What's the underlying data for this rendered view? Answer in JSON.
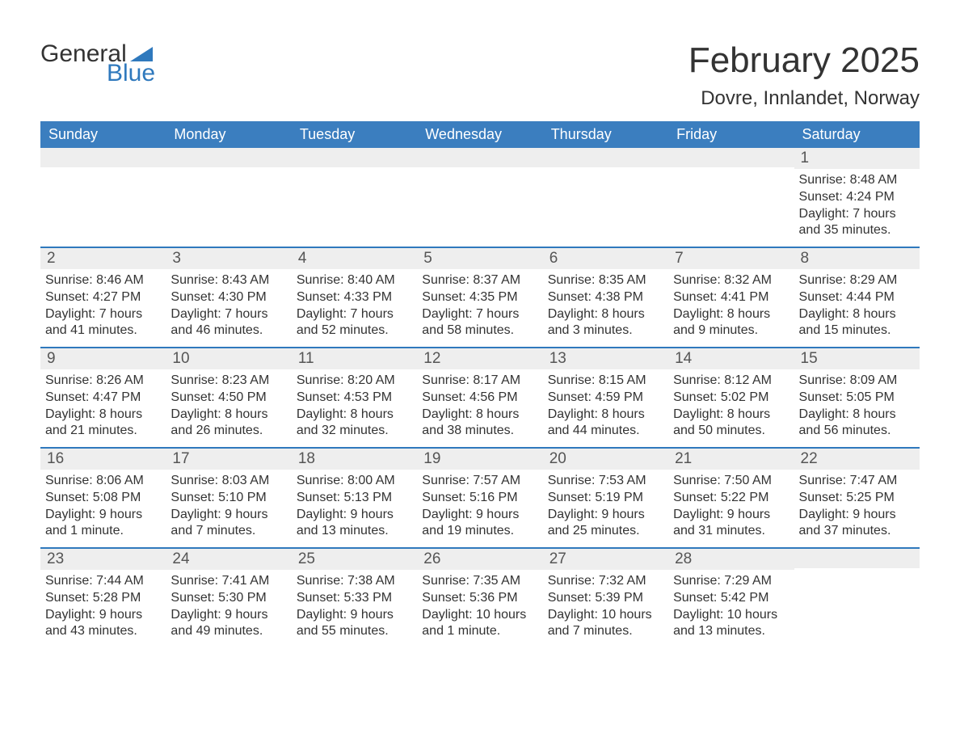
{
  "logo": {
    "text1": "General",
    "text2": "Blue",
    "accent_color": "#2f79bd"
  },
  "title": "February 2025",
  "location": "Dovre, Innlandet, Norway",
  "colors": {
    "header_bg": "#3b7ebf",
    "header_text": "#ffffff",
    "week_border": "#2f79bd",
    "daynum_bg": "#eeeeee",
    "text": "#333333",
    "page_bg": "#ffffff"
  },
  "day_names": [
    "Sunday",
    "Monday",
    "Tuesday",
    "Wednesday",
    "Thursday",
    "Friday",
    "Saturday"
  ],
  "weeks": [
    [
      null,
      null,
      null,
      null,
      null,
      null,
      {
        "n": "1",
        "sunrise": "Sunrise: 8:48 AM",
        "sunset": "Sunset: 4:24 PM",
        "dl1": "Daylight: 7 hours",
        "dl2": "and 35 minutes."
      }
    ],
    [
      {
        "n": "2",
        "sunrise": "Sunrise: 8:46 AM",
        "sunset": "Sunset: 4:27 PM",
        "dl1": "Daylight: 7 hours",
        "dl2": "and 41 minutes."
      },
      {
        "n": "3",
        "sunrise": "Sunrise: 8:43 AM",
        "sunset": "Sunset: 4:30 PM",
        "dl1": "Daylight: 7 hours",
        "dl2": "and 46 minutes."
      },
      {
        "n": "4",
        "sunrise": "Sunrise: 8:40 AM",
        "sunset": "Sunset: 4:33 PM",
        "dl1": "Daylight: 7 hours",
        "dl2": "and 52 minutes."
      },
      {
        "n": "5",
        "sunrise": "Sunrise: 8:37 AM",
        "sunset": "Sunset: 4:35 PM",
        "dl1": "Daylight: 7 hours",
        "dl2": "and 58 minutes."
      },
      {
        "n": "6",
        "sunrise": "Sunrise: 8:35 AM",
        "sunset": "Sunset: 4:38 PM",
        "dl1": "Daylight: 8 hours",
        "dl2": "and 3 minutes."
      },
      {
        "n": "7",
        "sunrise": "Sunrise: 8:32 AM",
        "sunset": "Sunset: 4:41 PM",
        "dl1": "Daylight: 8 hours",
        "dl2": "and 9 minutes."
      },
      {
        "n": "8",
        "sunrise": "Sunrise: 8:29 AM",
        "sunset": "Sunset: 4:44 PM",
        "dl1": "Daylight: 8 hours",
        "dl2": "and 15 minutes."
      }
    ],
    [
      {
        "n": "9",
        "sunrise": "Sunrise: 8:26 AM",
        "sunset": "Sunset: 4:47 PM",
        "dl1": "Daylight: 8 hours",
        "dl2": "and 21 minutes."
      },
      {
        "n": "10",
        "sunrise": "Sunrise: 8:23 AM",
        "sunset": "Sunset: 4:50 PM",
        "dl1": "Daylight: 8 hours",
        "dl2": "and 26 minutes."
      },
      {
        "n": "11",
        "sunrise": "Sunrise: 8:20 AM",
        "sunset": "Sunset: 4:53 PM",
        "dl1": "Daylight: 8 hours",
        "dl2": "and 32 minutes."
      },
      {
        "n": "12",
        "sunrise": "Sunrise: 8:17 AM",
        "sunset": "Sunset: 4:56 PM",
        "dl1": "Daylight: 8 hours",
        "dl2": "and 38 minutes."
      },
      {
        "n": "13",
        "sunrise": "Sunrise: 8:15 AM",
        "sunset": "Sunset: 4:59 PM",
        "dl1": "Daylight: 8 hours",
        "dl2": "and 44 minutes."
      },
      {
        "n": "14",
        "sunrise": "Sunrise: 8:12 AM",
        "sunset": "Sunset: 5:02 PM",
        "dl1": "Daylight: 8 hours",
        "dl2": "and 50 minutes."
      },
      {
        "n": "15",
        "sunrise": "Sunrise: 8:09 AM",
        "sunset": "Sunset: 5:05 PM",
        "dl1": "Daylight: 8 hours",
        "dl2": "and 56 minutes."
      }
    ],
    [
      {
        "n": "16",
        "sunrise": "Sunrise: 8:06 AM",
        "sunset": "Sunset: 5:08 PM",
        "dl1": "Daylight: 9 hours",
        "dl2": "and 1 minute."
      },
      {
        "n": "17",
        "sunrise": "Sunrise: 8:03 AM",
        "sunset": "Sunset: 5:10 PM",
        "dl1": "Daylight: 9 hours",
        "dl2": "and 7 minutes."
      },
      {
        "n": "18",
        "sunrise": "Sunrise: 8:00 AM",
        "sunset": "Sunset: 5:13 PM",
        "dl1": "Daylight: 9 hours",
        "dl2": "and 13 minutes."
      },
      {
        "n": "19",
        "sunrise": "Sunrise: 7:57 AM",
        "sunset": "Sunset: 5:16 PM",
        "dl1": "Daylight: 9 hours",
        "dl2": "and 19 minutes."
      },
      {
        "n": "20",
        "sunrise": "Sunrise: 7:53 AM",
        "sunset": "Sunset: 5:19 PM",
        "dl1": "Daylight: 9 hours",
        "dl2": "and 25 minutes."
      },
      {
        "n": "21",
        "sunrise": "Sunrise: 7:50 AM",
        "sunset": "Sunset: 5:22 PM",
        "dl1": "Daylight: 9 hours",
        "dl2": "and 31 minutes."
      },
      {
        "n": "22",
        "sunrise": "Sunrise: 7:47 AM",
        "sunset": "Sunset: 5:25 PM",
        "dl1": "Daylight: 9 hours",
        "dl2": "and 37 minutes."
      }
    ],
    [
      {
        "n": "23",
        "sunrise": "Sunrise: 7:44 AM",
        "sunset": "Sunset: 5:28 PM",
        "dl1": "Daylight: 9 hours",
        "dl2": "and 43 minutes."
      },
      {
        "n": "24",
        "sunrise": "Sunrise: 7:41 AM",
        "sunset": "Sunset: 5:30 PM",
        "dl1": "Daylight: 9 hours",
        "dl2": "and 49 minutes."
      },
      {
        "n": "25",
        "sunrise": "Sunrise: 7:38 AM",
        "sunset": "Sunset: 5:33 PM",
        "dl1": "Daylight: 9 hours",
        "dl2": "and 55 minutes."
      },
      {
        "n": "26",
        "sunrise": "Sunrise: 7:35 AM",
        "sunset": "Sunset: 5:36 PM",
        "dl1": "Daylight: 10 hours",
        "dl2": "and 1 minute."
      },
      {
        "n": "27",
        "sunrise": "Sunrise: 7:32 AM",
        "sunset": "Sunset: 5:39 PM",
        "dl1": "Daylight: 10 hours",
        "dl2": "and 7 minutes."
      },
      {
        "n": "28",
        "sunrise": "Sunrise: 7:29 AM",
        "sunset": "Sunset: 5:42 PM",
        "dl1": "Daylight: 10 hours",
        "dl2": "and 13 minutes."
      },
      null
    ]
  ]
}
